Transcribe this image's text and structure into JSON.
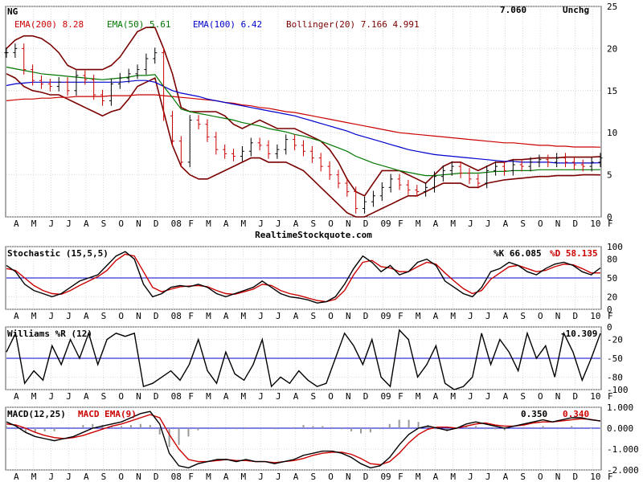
{
  "chart_data": [
    {
      "type": "candlestick",
      "symbol": "NG",
      "last": "7.060",
      "change": "Unchg",
      "ylim": [
        0,
        25
      ],
      "y_ticks": [
        "25",
        "20",
        "15",
        "10",
        "5",
        "0"
      ],
      "x_ticks": [
        "A",
        "M",
        "J",
        "J",
        "A",
        "S",
        "O",
        "N",
        "D",
        "08",
        "F",
        "M",
        "A",
        "M",
        "J",
        "J",
        "A",
        "S",
        "O",
        "N",
        "D",
        "09",
        "F",
        "M",
        "A",
        "M",
        "J",
        "J",
        "A",
        "S",
        "O",
        "N",
        "D",
        "10",
        "F"
      ],
      "legend": [
        {
          "label": "EMA(200)",
          "value": "8.28",
          "color": "#cc0000"
        },
        {
          "label": "EMA(50)",
          "value": "5.61",
          "color": "#007700"
        },
        {
          "label": "EMA(100)",
          "value": "6.42",
          "color": "#0000cc"
        },
        {
          "label": "Bollinger(20)",
          "value": "7.166 4.991",
          "color": "#7a0000"
        }
      ],
      "close": [
        19.5,
        20.0,
        17.5,
        16.2,
        15.8,
        15.5,
        16.0,
        15.0,
        16.8,
        16.3,
        14.5,
        13.8,
        15.8,
        16.5,
        17.0,
        17.5,
        18.8,
        19.5,
        12.0,
        9.0,
        6.5,
        11.5,
        11.0,
        9.5,
        8.0,
        7.5,
        7.2,
        7.8,
        8.8,
        8.5,
        7.5,
        8.0,
        9.2,
        8.5,
        7.8,
        7.0,
        6.0,
        5.0,
        4.0,
        3.0,
        1.0,
        1.8,
        2.5,
        3.5,
        4.5,
        3.8,
        3.2,
        3.0,
        3.5,
        4.8,
        5.5,
        6.0,
        5.2,
        4.5,
        4.0,
        5.5,
        6.0,
        5.5,
        6.2,
        6.0,
        6.5,
        6.8,
        6.5,
        7.0,
        6.5,
        6.2,
        6.0,
        6.5,
        7.0
      ],
      "ema50": [
        17.8,
        17.6,
        17.4,
        17.2,
        17.0,
        16.9,
        16.8,
        16.7,
        16.6,
        16.5,
        16.4,
        16.3,
        16.4,
        16.5,
        16.6,
        16.8,
        16.8,
        16.9,
        15.5,
        14.2,
        12.8,
        12.5,
        12.3,
        12.1,
        11.9,
        11.7,
        11.5,
        11.2,
        11.0,
        10.8,
        10.5,
        10.3,
        10.1,
        9.8,
        9.6,
        9.3,
        9.0,
        8.6,
        8.2,
        7.8,
        7.2,
        6.8,
        6.4,
        6.1,
        5.8,
        5.5,
        5.3,
        5.1,
        4.9,
        4.9,
        5.0,
        5.1,
        5.2,
        5.2,
        5.2,
        5.3,
        5.4,
        5.4,
        5.5,
        5.5,
        5.5,
        5.6,
        5.6,
        5.6,
        5.6,
        5.6,
        5.6,
        5.6,
        5.61
      ],
      "ema100": [
        15.6,
        15.8,
        15.9,
        16.0,
        16.0,
        16.0,
        16.0,
        16.0,
        16.0,
        16.0,
        16.0,
        16.0,
        16.0,
        16.0,
        16.1,
        16.2,
        16.2,
        16.0,
        15.5,
        15.0,
        14.7,
        14.5,
        14.3,
        14.0,
        13.8,
        13.6,
        13.4,
        13.2,
        13.0,
        12.8,
        12.6,
        12.4,
        12.2,
        12.0,
        11.7,
        11.4,
        11.1,
        10.8,
        10.5,
        10.2,
        9.8,
        9.5,
        9.2,
        8.9,
        8.6,
        8.3,
        8.0,
        7.8,
        7.6,
        7.4,
        7.3,
        7.2,
        7.1,
        7.0,
        6.9,
        6.8,
        6.7,
        6.6,
        6.6,
        6.5,
        6.5,
        6.5,
        6.5,
        6.4,
        6.4,
        6.4,
        6.4,
        6.4,
        6.42
      ],
      "ema200": [
        13.8,
        13.9,
        14.0,
        14.0,
        14.1,
        14.1,
        14.2,
        14.2,
        14.3,
        14.3,
        14.3,
        14.3,
        14.4,
        14.4,
        14.4,
        14.5,
        14.5,
        14.5,
        14.4,
        14.3,
        14.2,
        14.1,
        14.0,
        13.9,
        13.8,
        13.6,
        13.5,
        13.3,
        13.2,
        13.0,
        12.9,
        12.7,
        12.5,
        12.4,
        12.2,
        12.0,
        11.8,
        11.6,
        11.4,
        11.2,
        11.0,
        10.8,
        10.6,
        10.4,
        10.2,
        10.0,
        9.9,
        9.8,
        9.7,
        9.6,
        9.5,
        9.4,
        9.3,
        9.2,
        9.1,
        9.0,
        8.9,
        8.8,
        8.8,
        8.7,
        8.6,
        8.5,
        8.5,
        8.4,
        8.4,
        8.3,
        8.3,
        8.3,
        8.28
      ],
      "bb_upper": [
        20.0,
        21.0,
        21.5,
        21.5,
        21.2,
        20.5,
        19.5,
        18.0,
        17.5,
        17.5,
        17.5,
        17.5,
        18.0,
        19.0,
        20.5,
        22.0,
        22.5,
        22.5,
        20.0,
        17.0,
        13.0,
        12.5,
        12.5,
        12.5,
        12.5,
        12.0,
        11.0,
        10.5,
        11.0,
        11.5,
        11.0,
        10.5,
        10.5,
        10.5,
        10.0,
        9.5,
        9.0,
        8.0,
        6.5,
        4.5,
        3.0,
        2.5,
        4.0,
        5.5,
        5.5,
        5.5,
        5.0,
        4.5,
        4.0,
        5.0,
        6.0,
        6.5,
        6.5,
        6.0,
        5.5,
        6.0,
        6.5,
        6.5,
        6.8,
        6.8,
        6.9,
        7.0,
        7.0,
        7.0,
        7.1,
        7.1,
        7.1,
        7.1,
        7.166
      ],
      "bb_lower": [
        17.0,
        16.5,
        15.5,
        15.0,
        14.8,
        14.5,
        14.5,
        14.0,
        13.5,
        13.0,
        12.5,
        12.0,
        12.5,
        12.8,
        14.0,
        15.5,
        16.0,
        16.5,
        12.5,
        8.5,
        6.0,
        5.0,
        4.5,
        4.5,
        5.0,
        5.5,
        6.0,
        6.5,
        7.0,
        7.0,
        6.5,
        6.5,
        6.5,
        6.0,
        5.5,
        4.5,
        3.5,
        2.5,
        1.5,
        0.5,
        0.0,
        0.0,
        0.5,
        1.0,
        1.5,
        2.0,
        2.5,
        2.5,
        3.0,
        3.5,
        4.0,
        4.0,
        4.0,
        3.5,
        3.5,
        4.0,
        4.2,
        4.4,
        4.5,
        4.6,
        4.7,
        4.8,
        4.8,
        4.9,
        4.9,
        4.9,
        5.0,
        5.0,
        4.991
      ]
    },
    {
      "type": "line",
      "title": "Stochastic (15,5,5)",
      "readout_k": "%K 66.085",
      "readout_d": "%D 58.135",
      "ylim": [
        0,
        100
      ],
      "y_ticks": [
        "100",
        "80",
        "50",
        "20",
        "0"
      ],
      "series": [
        {
          "name": "%K",
          "color": "#000000",
          "values": [
            70,
            60,
            40,
            30,
            25,
            20,
            25,
            35,
            45,
            50,
            55,
            70,
            85,
            92,
            80,
            40,
            20,
            25,
            35,
            38,
            36,
            40,
            35,
            25,
            20,
            25,
            30,
            35,
            45,
            35,
            25,
            20,
            18,
            15,
            10,
            12,
            20,
            40,
            65,
            85,
            75,
            60,
            70,
            55,
            60,
            75,
            80,
            70,
            45,
            35,
            25,
            20,
            35,
            60,
            65,
            75,
            70,
            60,
            55,
            65,
            72,
            75,
            70,
            60,
            55,
            66.085
          ]
        },
        {
          "name": "%D",
          "color": "#cc0000",
          "values": [
            65,
            62,
            50,
            38,
            30,
            25,
            24,
            30,
            38,
            45,
            52,
            62,
            78,
            88,
            85,
            60,
            35,
            28,
            32,
            36,
            37,
            38,
            36,
            30,
            25,
            24,
            28,
            32,
            40,
            38,
            30,
            25,
            22,
            18,
            14,
            12,
            16,
            30,
            55,
            75,
            78,
            68,
            66,
            60,
            60,
            68,
            75,
            72,
            58,
            45,
            33,
            25,
            30,
            48,
            58,
            68,
            70,
            65,
            60,
            62,
            68,
            72,
            71,
            65,
            58,
            58.135
          ]
        }
      ]
    },
    {
      "type": "line",
      "title": "Williams %R (12)",
      "readout": "-10.309",
      "ylim": [
        -100,
        0
      ],
      "y_ticks": [
        "0",
        "-20",
        "-50",
        "-80",
        "-100"
      ],
      "series": [
        {
          "name": "Williams %R",
          "color": "#000000",
          "values": [
            -40,
            -10,
            -90,
            -70,
            -85,
            -30,
            -60,
            -20,
            -50,
            -10,
            -60,
            -20,
            -10,
            -15,
            -10,
            -95,
            -90,
            -80,
            -70,
            -85,
            -60,
            -20,
            -70,
            -90,
            -40,
            -75,
            -85,
            -60,
            -20,
            -95,
            -80,
            -90,
            -70,
            -85,
            -95,
            -90,
            -50,
            -10,
            -30,
            -60,
            -20,
            -80,
            -95,
            -5,
            -20,
            -80,
            -60,
            -30,
            -90,
            -100,
            -95,
            -80,
            -10,
            -60,
            -20,
            -40,
            -70,
            -10,
            -50,
            -30,
            -80,
            -10,
            -40,
            -85,
            -50,
            -10.309
          ]
        }
      ]
    },
    {
      "type": "line",
      "title": "MACD(12,25)",
      "legend_signal": "MACD EMA(9)",
      "readout_macd": "0.350",
      "readout_signal": "0.340",
      "ylim": [
        -2.0,
        1.0
      ],
      "y_ticks": [
        "1.000",
        "0.000",
        "-1.000",
        "-2.000"
      ],
      "series": [
        {
          "name": "MACD",
          "color": "#000000",
          "values": [
            0.3,
            0.1,
            -0.2,
            -0.4,
            -0.5,
            -0.6,
            -0.5,
            -0.4,
            -0.2,
            0.0,
            0.1,
            0.2,
            0.3,
            0.5,
            0.7,
            0.8,
            0.2,
            -1.2,
            -1.8,
            -1.9,
            -1.7,
            -1.6,
            -1.5,
            -1.5,
            -1.6,
            -1.5,
            -1.6,
            -1.6,
            -1.7,
            -1.6,
            -1.5,
            -1.3,
            -1.2,
            -1.1,
            -1.1,
            -1.2,
            -1.4,
            -1.7,
            -1.9,
            -1.8,
            -1.4,
            -0.8,
            -0.3,
            0.0,
            0.1,
            0.0,
            -0.1,
            0.0,
            0.2,
            0.3,
            0.2,
            0.1,
            0.0,
            0.1,
            0.2,
            0.3,
            0.4,
            0.3,
            0.4,
            0.5,
            0.5,
            0.4,
            0.35
          ]
        },
        {
          "name": "MACD EMA(9)",
          "color": "#cc0000",
          "values": [
            0.2,
            0.15,
            0.0,
            -0.2,
            -0.35,
            -0.45,
            -0.5,
            -0.45,
            -0.35,
            -0.2,
            -0.05,
            0.1,
            0.2,
            0.35,
            0.5,
            0.65,
            0.5,
            -0.3,
            -1.0,
            -1.5,
            -1.6,
            -1.6,
            -1.55,
            -1.5,
            -1.55,
            -1.55,
            -1.6,
            -1.6,
            -1.65,
            -1.6,
            -1.55,
            -1.45,
            -1.3,
            -1.2,
            -1.15,
            -1.15,
            -1.25,
            -1.45,
            -1.7,
            -1.75,
            -1.6,
            -1.2,
            -0.7,
            -0.3,
            -0.05,
            0.05,
            0.05,
            0.0,
            0.1,
            0.2,
            0.25,
            0.15,
            0.1,
            0.1,
            0.15,
            0.25,
            0.3,
            0.3,
            0.35,
            0.4,
            0.45,
            0.42,
            0.34
          ]
        }
      ],
      "histogram": [
        0.1,
        -0.05,
        -0.2,
        -0.2,
        -0.15,
        -0.15,
        0.0,
        0.05,
        0.15,
        0.2,
        0.15,
        0.1,
        0.1,
        0.15,
        0.2,
        0.15,
        -0.3,
        -0.9,
        -0.8,
        -0.4,
        -0.1,
        0.0,
        0.05,
        0.0,
        -0.05,
        0.05,
        0.0,
        0.0,
        -0.05,
        0.0,
        0.05,
        0.15,
        0.1,
        0.1,
        0.05,
        -0.05,
        -0.15,
        -0.25,
        -0.2,
        -0.05,
        0.2,
        0.4,
        0.4,
        0.3,
        0.15,
        -0.05,
        -0.15,
        0.0,
        0.1,
        0.1,
        -0.05,
        -0.05,
        -0.1,
        0.0,
        0.05,
        0.05,
        0.1,
        0.0,
        0.05,
        0.1,
        0.05,
        -0.02,
        0.01
      ]
    }
  ],
  "watermark": "RealtimeStockquote.com"
}
